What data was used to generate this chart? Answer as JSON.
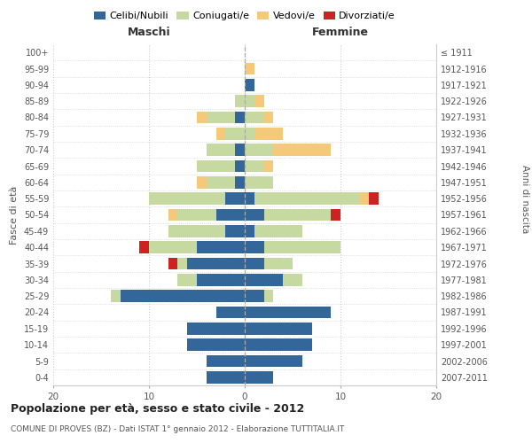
{
  "age_groups": [
    "0-4",
    "5-9",
    "10-14",
    "15-19",
    "20-24",
    "25-29",
    "30-34",
    "35-39",
    "40-44",
    "45-49",
    "50-54",
    "55-59",
    "60-64",
    "65-69",
    "70-74",
    "75-79",
    "80-84",
    "85-89",
    "90-94",
    "95-99",
    "100+"
  ],
  "birth_years": [
    "2007-2011",
    "2002-2006",
    "1997-2001",
    "1992-1996",
    "1987-1991",
    "1982-1986",
    "1977-1981",
    "1972-1976",
    "1967-1971",
    "1962-1966",
    "1957-1961",
    "1952-1956",
    "1947-1951",
    "1942-1946",
    "1937-1941",
    "1932-1936",
    "1927-1931",
    "1922-1926",
    "1917-1921",
    "1912-1916",
    "≤ 1911"
  ],
  "maschi": {
    "celibi": [
      4,
      4,
      6,
      6,
      3,
      13,
      5,
      6,
      5,
      2,
      3,
      2,
      1,
      1,
      1,
      0,
      1,
      0,
      0,
      0,
      0
    ],
    "coniugati": [
      0,
      0,
      0,
      0,
      0,
      1,
      2,
      1,
      5,
      6,
      4,
      8,
      3,
      4,
      3,
      2,
      3,
      1,
      0,
      0,
      0
    ],
    "vedovi": [
      0,
      0,
      0,
      0,
      0,
      0,
      0,
      0,
      0,
      0,
      1,
      0,
      1,
      0,
      0,
      1,
      1,
      0,
      0,
      0,
      0
    ],
    "divorziati": [
      0,
      0,
      0,
      0,
      0,
      0,
      0,
      1,
      1,
      0,
      0,
      0,
      0,
      0,
      0,
      0,
      0,
      0,
      0,
      0,
      0
    ]
  },
  "femmine": {
    "nubili": [
      3,
      6,
      7,
      7,
      9,
      2,
      4,
      2,
      2,
      1,
      2,
      1,
      0,
      0,
      0,
      0,
      0,
      0,
      1,
      0,
      0
    ],
    "coniugate": [
      0,
      0,
      0,
      0,
      0,
      1,
      2,
      3,
      8,
      5,
      7,
      11,
      3,
      2,
      3,
      1,
      2,
      1,
      0,
      0,
      0
    ],
    "vedove": [
      0,
      0,
      0,
      0,
      0,
      0,
      0,
      0,
      0,
      0,
      0,
      1,
      0,
      1,
      6,
      3,
      1,
      1,
      0,
      1,
      0
    ],
    "divorziate": [
      0,
      0,
      0,
      0,
      0,
      0,
      0,
      0,
      0,
      0,
      1,
      1,
      0,
      0,
      0,
      0,
      0,
      0,
      0,
      0,
      0
    ]
  },
  "colors": {
    "celibi_nubili": "#336699",
    "coniugati": "#c5d9a0",
    "vedovi": "#f5c97a",
    "divorziati": "#cc2222"
  },
  "xlim": 20,
  "title": "Popolazione per età, sesso e stato civile - 2012",
  "subtitle": "COMUNE DI PROVES (BZ) - Dati ISTAT 1° gennaio 2012 - Elaborazione TUTTITALIA.IT",
  "ylabel_left": "Fasce di età",
  "ylabel_right": "Anni di nascita",
  "xlabel_maschi": "Maschi",
  "xlabel_femmine": "Femmine",
  "legend_labels": [
    "Celibi/Nubili",
    "Coniugati/e",
    "Vedovi/e",
    "Divorziati/e"
  ],
  "bg_color": "#ffffff",
  "bar_height": 0.75,
  "grid_color": "#cccccc"
}
